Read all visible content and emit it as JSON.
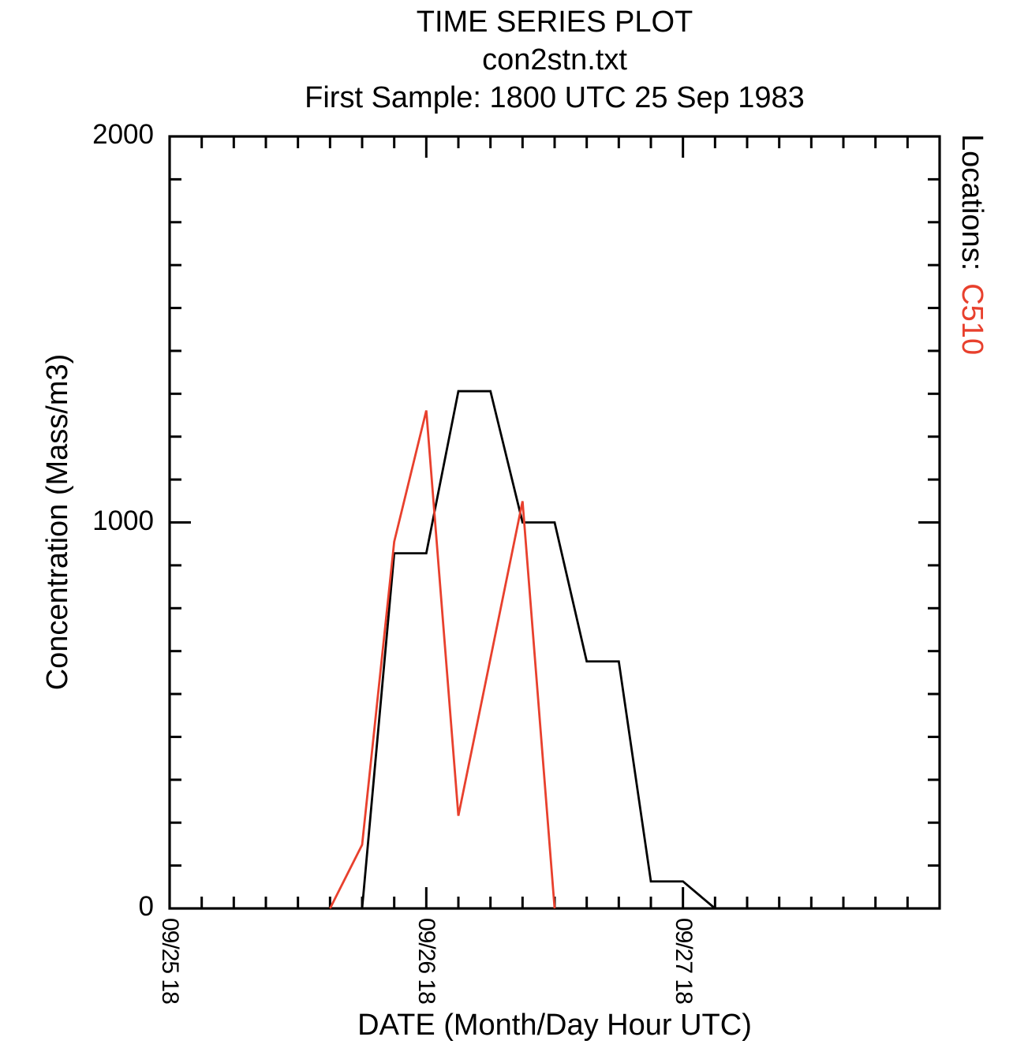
{
  "figure": {
    "title_lines": [
      "TIME SERIES PLOT",
      "con2stn.txt",
      "First Sample: 1800 UTC 25 Sep 1983"
    ],
    "x_axis": {
      "label": "DATE (Month/Day Hour UTC)",
      "tick_labels": [
        "09/25 18",
        "09/26 18",
        "09/27 18"
      ]
    },
    "y_axis": {
      "label": "Concentration (Mass/m3)",
      "tick_labels": [
        "2000",
        "1000",
        "0"
      ]
    },
    "legend": {
      "prefix": "Locations:",
      "stations": [
        {
          "id": "C510",
          "color": "#e8402d"
        }
      ]
    }
  },
  "chart_data": {
    "type": "line",
    "title": "TIME SERIES PLOT",
    "subtitle": "con2stn.txt",
    "caption": "First Sample: 1800 UTC 25 Sep 1983",
    "xlabel": "DATE (Month/Day Hour UTC)",
    "ylabel": "Concentration (Mass/m3)",
    "x_unit": "hours since 1800 UTC 25 Sep 1983",
    "xlim_hours": [
      0,
      72
    ],
    "ylim": [
      0,
      2000
    ],
    "grid": false,
    "legend_position": "right-vertical",
    "x_major_ticks": [
      {
        "hours": 0,
        "label": "09/25 18"
      },
      {
        "hours": 24,
        "label": "09/26 18"
      },
      {
        "hours": 48,
        "label": "09/27 18"
      }
    ],
    "x_minor_tick_hours": 3,
    "y_major_ticks": [
      2000,
      1000,
      0
    ],
    "y_minor_divisions_per_major": 9,
    "series": [
      {
        "name": "unlabeled station (black)",
        "color": "#000000",
        "points": [
          {
            "time": "09/26 12",
            "hours": 18,
            "value": 0
          },
          {
            "time": "09/26 15",
            "hours": 21,
            "value": 920
          },
          {
            "time": "09/26 18",
            "hours": 24,
            "value": 920
          },
          {
            "time": "09/26 21",
            "hours": 27,
            "value": 1340
          },
          {
            "time": "09/27 00",
            "hours": 30,
            "value": 1340
          },
          {
            "time": "09/27 03",
            "hours": 33,
            "value": 1000
          },
          {
            "time": "09/27 06",
            "hours": 36,
            "value": 1000
          },
          {
            "time": "09/27 09",
            "hours": 39,
            "value": 640
          },
          {
            "time": "09/27 12",
            "hours": 42,
            "value": 640
          },
          {
            "time": "09/27 15",
            "hours": 45,
            "value": 70
          },
          {
            "time": "09/27 18",
            "hours": 48,
            "value": 70
          },
          {
            "time": "09/27 21",
            "hours": 51,
            "value": 0
          }
        ]
      },
      {
        "name": "C510 (red)",
        "color": "#e8402d",
        "points": [
          {
            "time": "09/26 09",
            "hours": 15,
            "value": 0
          },
          {
            "time": "09/26 12",
            "hours": 18,
            "value": 165
          },
          {
            "time": "09/26 15",
            "hours": 21,
            "value": 950
          },
          {
            "time": "09/26 18",
            "hours": 24,
            "value": 1290
          },
          {
            "time": "09/26 21",
            "hours": 27,
            "value": 240
          },
          {
            "time": "09/27 03",
            "hours": 33,
            "value": 1055
          },
          {
            "time": "09/27 06",
            "hours": 36,
            "value": 0
          }
        ]
      }
    ]
  }
}
